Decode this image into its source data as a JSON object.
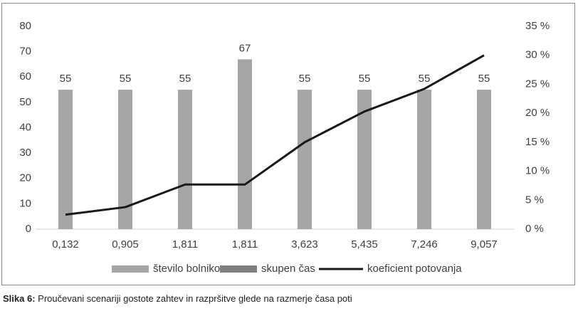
{
  "chart_data": {
    "type": "bar",
    "categories": [
      "0,132",
      "0,905",
      "1,811",
      "1,811",
      "3,623",
      "5,435",
      "7,246",
      "9,057"
    ],
    "series": [
      {
        "name": "število bolnikov",
        "color": "#a6a6a6",
        "values": [
          55,
          55,
          55,
          67,
          55,
          55,
          55,
          55
        ]
      },
      {
        "name": "skupen čas",
        "color": "#7f7f7f",
        "values": [
          null,
          null,
          null,
          null,
          null,
          null,
          null,
          null
        ]
      },
      {
        "name": "koeficient potovanja",
        "color": "#1a1a1a",
        "type": "line",
        "axis": "y2",
        "values": [
          2.5,
          3.8,
          7.7,
          7.7,
          15,
          20.3,
          24.2,
          30
        ]
      }
    ],
    "ylim": [
      0,
      80
    ],
    "yticks": [
      0,
      10,
      20,
      30,
      40,
      50,
      60,
      70,
      80
    ],
    "y2lim": [
      0,
      35
    ],
    "y2ticks": [
      {
        "value": 0,
        "label": "0 %"
      },
      {
        "value": 5,
        "label": "5 %"
      },
      {
        "value": 10,
        "label": "10 %"
      },
      {
        "value": 15,
        "label": "15 %"
      },
      {
        "value": 20,
        "label": "20 %"
      },
      {
        "value": 25,
        "label": "25 %"
      },
      {
        "value": 30,
        "label": "30 %"
      },
      {
        "value": 35,
        "label": "35 %"
      }
    ],
    "legend": "bottom"
  },
  "caption": {
    "label": "Slika 6:",
    "text": " Proučevani scenariji gostote zahtev in razpršitve glede na razmerje časa poti"
  }
}
